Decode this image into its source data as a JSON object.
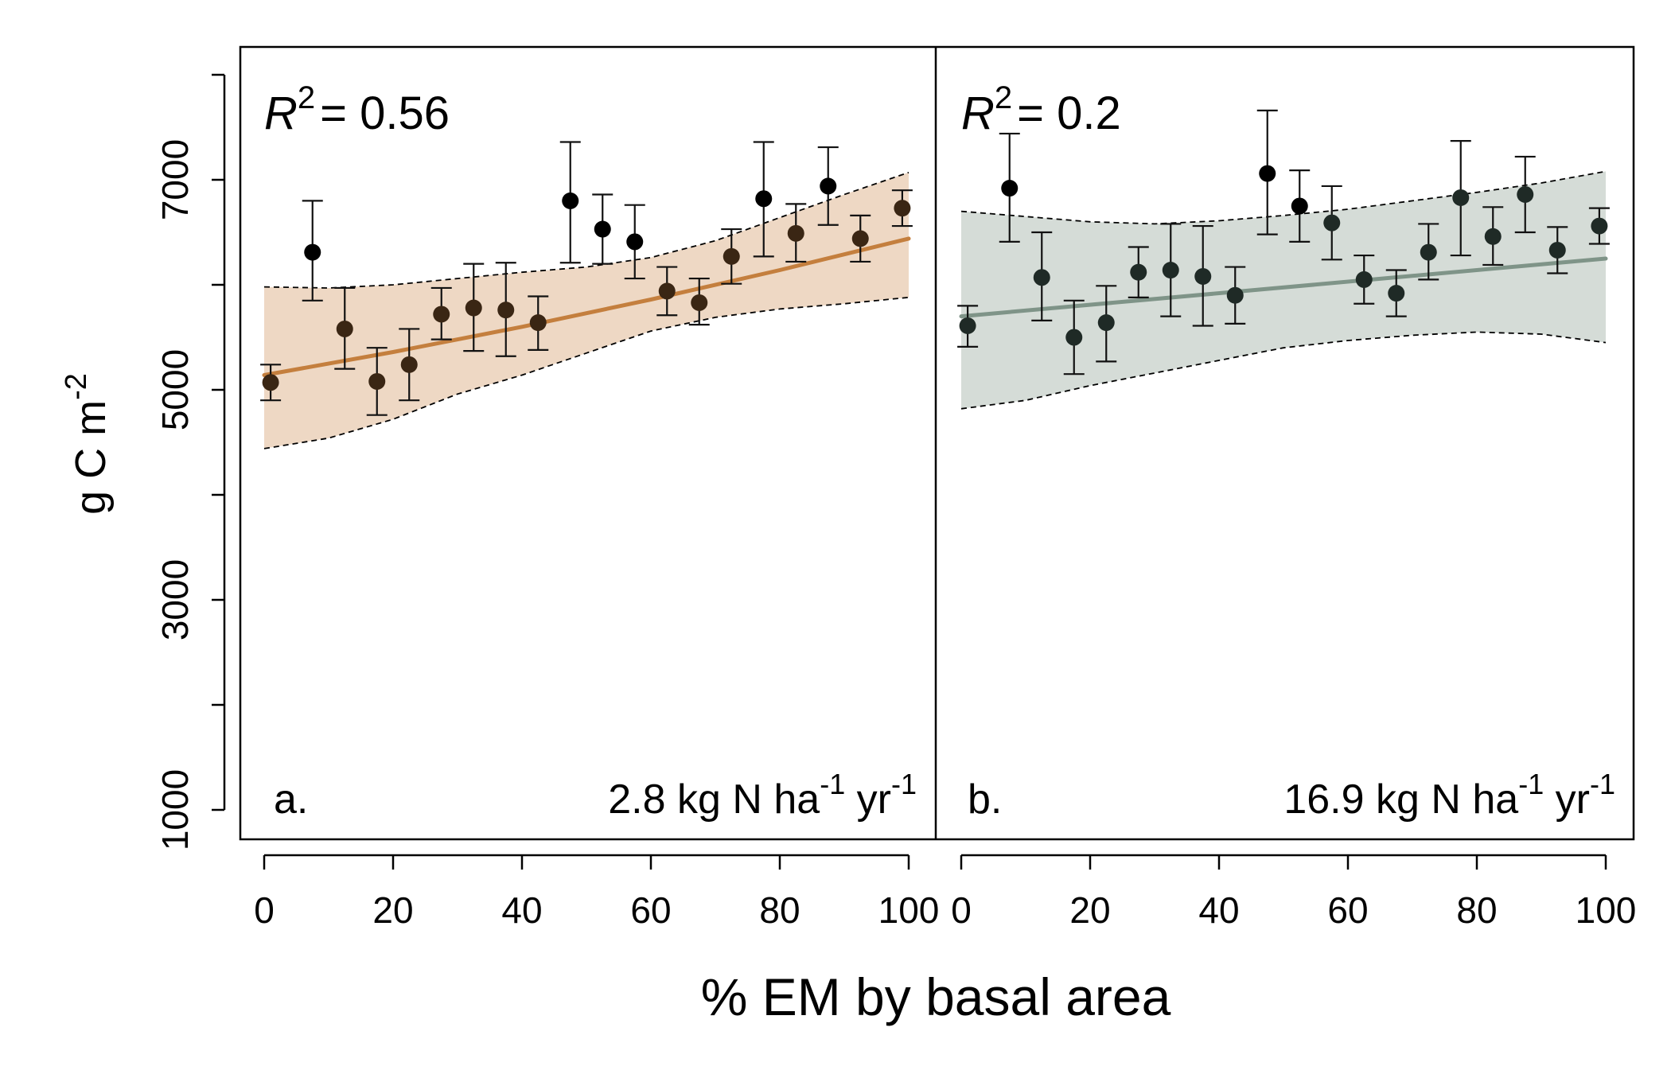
{
  "figure": {
    "ylabel": "g C m",
    "ylabel_sup": "-2",
    "xlabel": "% EM by basal area"
  },
  "chart_data": [
    {
      "type": "scatter",
      "panel_label": "a.",
      "r2_symbol": "R",
      "r2_sup": "2",
      "r2_text": "= 0.56",
      "deposition_main": "2.8 kg N ha",
      "deposition_sup1": "-1",
      "deposition_mid": " yr",
      "deposition_sup2": "-1",
      "fill_color": "#eed8c4",
      "line_color": "#c47f3e",
      "xlim": [
        0,
        100
      ],
      "ylim": [
        1000,
        8000
      ],
      "x_ticks": [
        0,
        20,
        40,
        60,
        80,
        100
      ],
      "y_ticks": [
        1000,
        2000,
        3000,
        4000,
        5000,
        6000,
        7000,
        8000
      ],
      "y_tick_labels": [
        "1000",
        "",
        "3000",
        "",
        "5000",
        "",
        "7000",
        ""
      ],
      "points": [
        {
          "x": 1,
          "y": 5070,
          "lo": 4900,
          "hi": 5240
        },
        {
          "x": 7.5,
          "y": 6310,
          "lo": 5850,
          "hi": 6800
        },
        {
          "x": 12.5,
          "y": 5580,
          "lo": 5200,
          "hi": 5970
        },
        {
          "x": 17.5,
          "y": 5080,
          "lo": 4760,
          "hi": 5400
        },
        {
          "x": 22.5,
          "y": 5240,
          "lo": 4900,
          "hi": 5580
        },
        {
          "x": 27.5,
          "y": 5720,
          "lo": 5480,
          "hi": 5970
        },
        {
          "x": 32.5,
          "y": 5780,
          "lo": 5370,
          "hi": 6200
        },
        {
          "x": 37.5,
          "y": 5760,
          "lo": 5320,
          "hi": 6210
        },
        {
          "x": 42.5,
          "y": 5640,
          "lo": 5380,
          "hi": 5890
        },
        {
          "x": 47.5,
          "y": 6800,
          "lo": 6210,
          "hi": 7360
        },
        {
          "x": 52.5,
          "y": 6530,
          "lo": 6200,
          "hi": 6860
        },
        {
          "x": 57.5,
          "y": 6410,
          "lo": 6060,
          "hi": 6760
        },
        {
          "x": 62.5,
          "y": 5940,
          "lo": 5710,
          "hi": 6170
        },
        {
          "x": 67.5,
          "y": 5830,
          "lo": 5620,
          "hi": 6060
        },
        {
          "x": 72.5,
          "y": 6270,
          "lo": 6010,
          "hi": 6530
        },
        {
          "x": 77.5,
          "y": 6820,
          "lo": 6270,
          "hi": 7360
        },
        {
          "x": 82.5,
          "y": 6490,
          "lo": 6220,
          "hi": 6770
        },
        {
          "x": 87.5,
          "y": 6940,
          "lo": 6570,
          "hi": 7310
        },
        {
          "x": 92.5,
          "y": 6440,
          "lo": 6220,
          "hi": 6660
        },
        {
          "x": 99,
          "y": 6730,
          "lo": 6560,
          "hi": 6900
        }
      ],
      "fit": {
        "x": [
          0,
          20,
          40,
          60,
          80,
          100
        ],
        "y": [
          5140,
          5360,
          5600,
          5860,
          6140,
          6440
        ]
      },
      "band_upper": {
        "x": [
          0,
          10,
          20,
          30,
          40,
          50,
          60,
          70,
          80,
          90,
          100
        ],
        "y": [
          5980,
          5970,
          6000,
          6060,
          6120,
          6170,
          6260,
          6420,
          6640,
          6860,
          7070
        ]
      },
      "band_lower": {
        "x": [
          0,
          10,
          20,
          30,
          40,
          50,
          60,
          70,
          80,
          90,
          100
        ],
        "y": [
          4440,
          4540,
          4720,
          4960,
          5140,
          5350,
          5560,
          5690,
          5770,
          5820,
          5880
        ]
      }
    },
    {
      "type": "scatter",
      "panel_label": "b.",
      "r2_symbol": "R",
      "r2_sup": "2",
      "r2_text": "= 0.2",
      "deposition_main": "16.9 kg N ha",
      "deposition_sup1": "-1",
      "deposition_mid": " yr",
      "deposition_sup2": "-1",
      "fill_color": "#d5dcd7",
      "line_color": "#7f9488",
      "xlim": [
        0,
        100
      ],
      "ylim": [
        1000,
        8000
      ],
      "x_ticks": [
        0,
        20,
        40,
        60,
        80,
        100
      ],
      "points": [
        {
          "x": 1,
          "y": 5610,
          "lo": 5410,
          "hi": 5800
        },
        {
          "x": 7.5,
          "y": 6920,
          "lo": 6410,
          "hi": 7440
        },
        {
          "x": 12.5,
          "y": 6070,
          "lo": 5660,
          "hi": 6500
        },
        {
          "x": 17.5,
          "y": 5500,
          "lo": 5150,
          "hi": 5850
        },
        {
          "x": 22.5,
          "y": 5640,
          "lo": 5270,
          "hi": 5990
        },
        {
          "x": 27.5,
          "y": 6120,
          "lo": 5880,
          "hi": 6360
        },
        {
          "x": 32.5,
          "y": 6140,
          "lo": 5700,
          "hi": 6580
        },
        {
          "x": 37.5,
          "y": 6080,
          "lo": 5610,
          "hi": 6560
        },
        {
          "x": 42.5,
          "y": 5900,
          "lo": 5630,
          "hi": 6170
        },
        {
          "x": 47.5,
          "y": 7060,
          "lo": 6480,
          "hi": 7660
        },
        {
          "x": 52.5,
          "y": 6750,
          "lo": 6410,
          "hi": 7090
        },
        {
          "x": 57.5,
          "y": 6590,
          "lo": 6240,
          "hi": 6940
        },
        {
          "x": 62.5,
          "y": 6050,
          "lo": 5820,
          "hi": 6280
        },
        {
          "x": 67.5,
          "y": 5920,
          "lo": 5700,
          "hi": 6140
        },
        {
          "x": 72.5,
          "y": 6310,
          "lo": 6050,
          "hi": 6580
        },
        {
          "x": 77.5,
          "y": 6830,
          "lo": 6280,
          "hi": 7370
        },
        {
          "x": 82.5,
          "y": 6460,
          "lo": 6190,
          "hi": 6740
        },
        {
          "x": 87.5,
          "y": 6860,
          "lo": 6500,
          "hi": 7220
        },
        {
          "x": 92.5,
          "y": 6330,
          "lo": 6110,
          "hi": 6550
        },
        {
          "x": 99,
          "y": 6560,
          "lo": 6390,
          "hi": 6730
        }
      ],
      "fit": {
        "x": [
          0,
          100
        ],
        "y": [
          5700,
          6250
        ]
      },
      "band_upper": {
        "x": [
          0,
          10,
          20,
          30,
          40,
          50,
          60,
          70,
          80,
          90,
          100
        ],
        "y": [
          6700,
          6650,
          6600,
          6580,
          6610,
          6660,
          6720,
          6800,
          6880,
          6970,
          7080
        ]
      },
      "band_lower": {
        "x": [
          0,
          10,
          20,
          30,
          40,
          50,
          60,
          70,
          80,
          90,
          100
        ],
        "y": [
          4820,
          4900,
          5040,
          5160,
          5280,
          5400,
          5470,
          5520,
          5550,
          5530,
          5450
        ]
      }
    }
  ]
}
